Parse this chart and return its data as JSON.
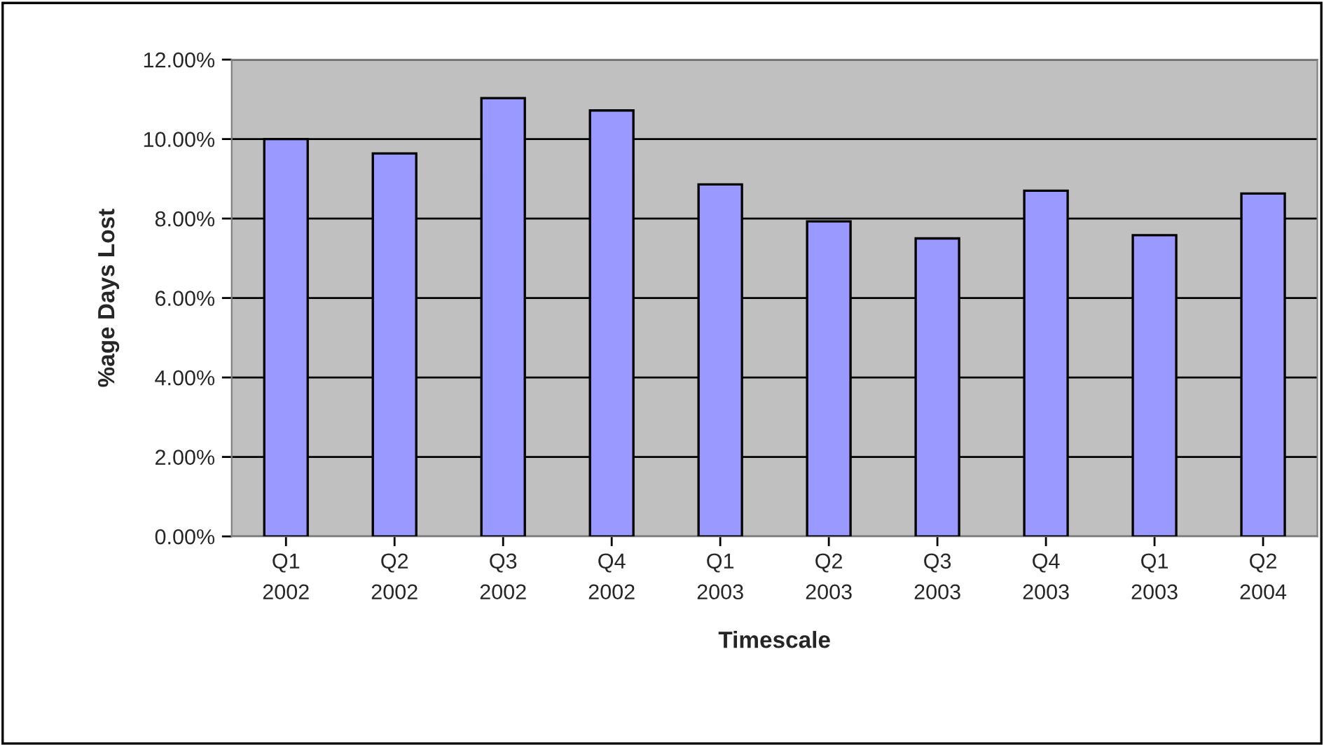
{
  "chart_data": {
    "type": "bar",
    "categories": [
      "Q1\n2002",
      "Q2\n2002",
      "Q3\n2002",
      "Q4\n2002",
      "Q1\n2003",
      "Q2\n2003",
      "Q3\n2003",
      "Q4\n2003",
      "Q1\n2003",
      "Q2\n2004"
    ],
    "values": [
      10.0,
      9.64,
      11.03,
      10.72,
      8.86,
      7.93,
      7.5,
      8.7,
      7.58,
      8.63
    ],
    "color": "#9999ff",
    "xlabel": "Timescale",
    "ylabel": "%age Days Lost",
    "ylim": [
      0,
      12
    ],
    "yticks": [
      {
        "value": 0,
        "label": "0.00%"
      },
      {
        "value": 2,
        "label": "2.00%"
      },
      {
        "value": 4,
        "label": "4.00%"
      },
      {
        "value": 6,
        "label": "6.00%"
      },
      {
        "value": 8,
        "label": "8.00%"
      },
      {
        "value": 10,
        "label": "10.00%"
      },
      {
        "value": 12,
        "label": "12.00%"
      }
    ],
    "grid": "y",
    "legend": false
  }
}
